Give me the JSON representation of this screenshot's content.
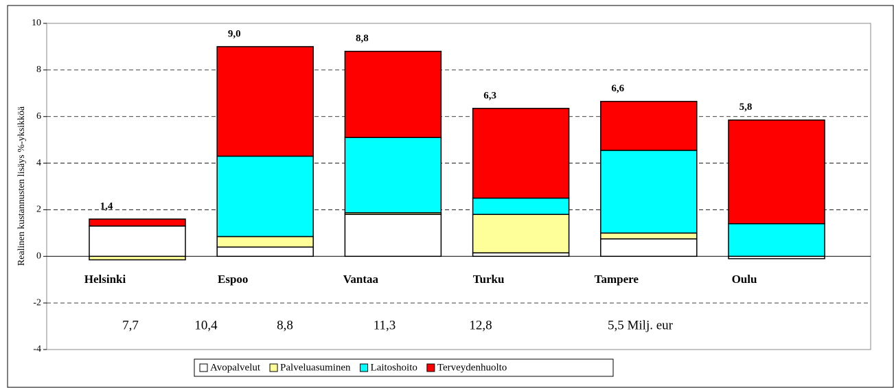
{
  "chart_data": {
    "type": "stacked_bar",
    "y_label": "Realinen kustannusten lisäys %-yksikköä",
    "categories": [
      "Helsinki",
      "Espoo",
      "Vantaa",
      "Turku",
      "Tampere",
      "Oulu"
    ],
    "series": [
      {
        "name": "Avopalvelut",
        "color": "#ffffff",
        "values": [
          1.3,
          0.4,
          1.8,
          0.15,
          0.75,
          -0.1
        ]
      },
      {
        "name": "Palveluasuminen",
        "color": "#ffff99",
        "values": [
          -0.15,
          0.45,
          0.07,
          1.65,
          0.25,
          0
        ]
      },
      {
        "name": "Laitoshoito",
        "color": "#00ffff",
        "values": [
          0,
          3.45,
          3.23,
          0.7,
          3.55,
          1.4
        ]
      },
      {
        "name": "Terveydenhuolto",
        "color": "#ff0000",
        "values": [
          0.3,
          4.7,
          3.7,
          3.85,
          2.1,
          4.45
        ]
      }
    ],
    "totals": {
      "values": [
        1.4,
        9.0,
        8.8,
        6.3,
        6.6,
        5.8
      ],
      "value_labels": [
        "1,4",
        "9,0",
        "8,8",
        "6,3",
        "6,6",
        "5,8"
      ]
    },
    "annotations": [
      "7,7",
      "10,4",
      "8,8",
      "11,3",
      "12,8",
      "5,5 Milj. eur"
    ],
    "ylim": [
      -4,
      10
    ],
    "yticks": [
      -4,
      -2,
      0,
      2,
      4,
      6,
      8,
      10
    ],
    "grid": true
  }
}
